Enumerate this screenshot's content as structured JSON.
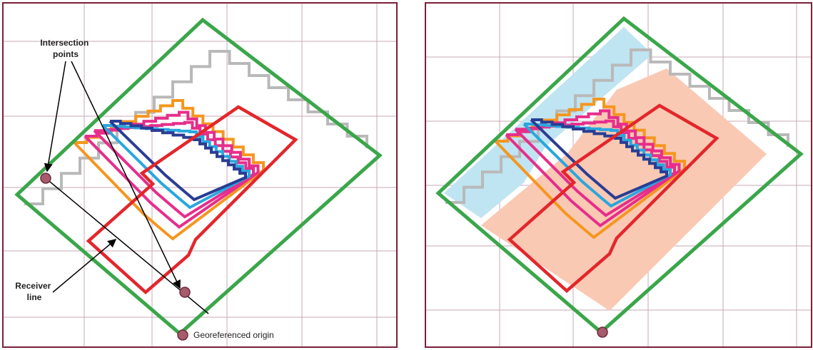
{
  "labels": {
    "intersection": [
      "Intersection",
      "points"
    ],
    "receiver": [
      "Receiver",
      "line"
    ],
    "origin": "Georeferenced origin"
  },
  "colors": {
    "frame": "#7a2038",
    "grid": "#c7a9b5",
    "green": "#3aa64a",
    "gray": "#b9b9b9",
    "orange": "#f5961e",
    "magenta": "#e62e8b",
    "blue": "#2a3d94",
    "light_blue": "#2aa7de",
    "red": "#e3262b",
    "fill_blue": "#bfe4f2",
    "fill_peach": "#f9c9b4",
    "marker": "#a85b6b"
  },
  "panels": [
    {
      "id": "left",
      "annotated": true
    },
    {
      "id": "right",
      "annotated": false
    }
  ]
}
